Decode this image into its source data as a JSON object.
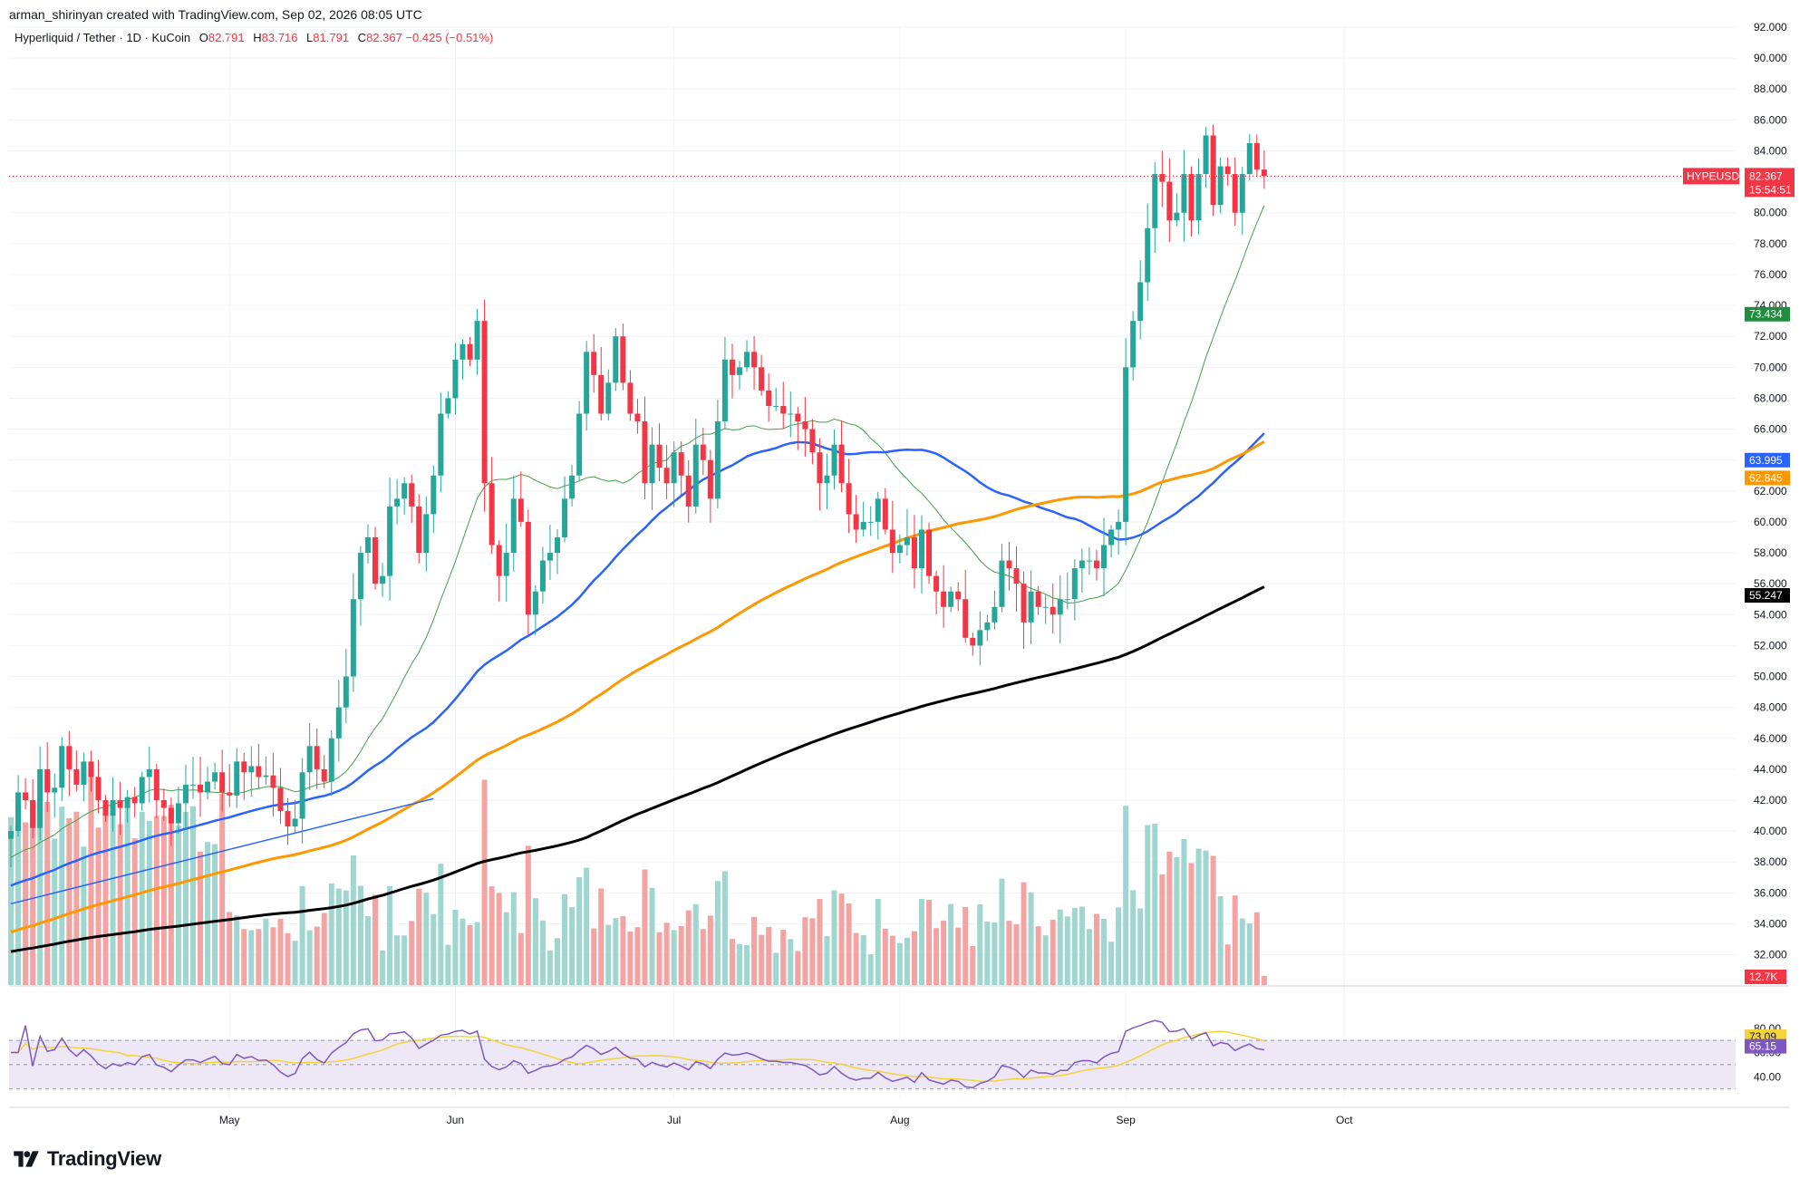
{
  "attribution": "arman_shirinyan created with TradingView.com, Sep 02, 2026 08:05 UTC",
  "symbol": {
    "name": "Hyperliquid / Tether · 1D · KuCoin",
    "open_label": "O",
    "open": "82.791",
    "high_label": "H",
    "high": "83.716",
    "low_label": "L",
    "low": "81.791",
    "close_label": "C",
    "close": "82.367",
    "change": "−0.425 (−0.51%)"
  },
  "brand": {
    "name": "TradingView",
    "logo_icon": "tradingview-logo-icon"
  },
  "colors": {
    "up": "#26a69a",
    "down": "#f23645",
    "vol_up": "#9fd6cf",
    "vol_down": "#f4a3a3",
    "ma20": "#43a047",
    "ma50": "#2962ff",
    "ma100": "#ff9800",
    "ma200": "#000000",
    "rsi": "#7e57c2",
    "rsi_ma": "#f5d33b",
    "rsi_band": "#ede7f6"
  },
  "chart_data": {
    "type": "candlestick",
    "timeframe": "1D",
    "exchange": "KuCoin",
    "ylim": [
      30.5,
      93
    ],
    "y_ticks": [
      "92.000",
      "90.000",
      "88.000",
      "86.000",
      "84.000",
      "82.000",
      "80.000",
      "78.000",
      "76.000",
      "74.000",
      "72.000",
      "70.000",
      "68.000",
      "66.000",
      "64.000",
      "62.000",
      "60.000",
      "58.000",
      "56.000",
      "54.000",
      "52.000",
      "50.000",
      "48.000",
      "46.000",
      "44.000",
      "42.000",
      "40.000",
      "38.000",
      "36.000",
      "34.000",
      "32.000"
    ],
    "x_ticks": [
      {
        "label": "May",
        "day": 30
      },
      {
        "label": "Jun",
        "day": 61
      },
      {
        "label": "Jul",
        "day": 91
      },
      {
        "label": "Aug",
        "day": 122
      },
      {
        "label": "Sep",
        "day": 153
      },
      {
        "label": "Oct",
        "day": 183
      }
    ],
    "candles_start": "Apr 01",
    "candles_close": [
      40.0,
      42.5,
      42.0,
      40.2,
      44.0,
      42.5,
      42.8,
      45.5,
      44.0,
      43.0,
      44.5,
      43.5,
      42.0,
      41.0,
      42.0,
      41.5,
      42.2,
      41.8,
      43.5,
      44.0,
      42.0,
      41.5,
      40.5,
      41.8,
      43.0,
      43.0,
      42.5,
      43.2,
      43.8,
      42.5,
      42.3,
      44.5,
      43.8,
      44.2,
      43.5,
      43.6,
      42.8,
      41.3,
      40.3,
      40.8,
      43.8,
      45.5,
      44.0,
      43.2,
      46.0,
      48.0,
      50.0,
      55.0,
      58.0,
      59.0,
      56.0,
      56.5,
      61.0,
      61.5,
      62.5,
      61.0,
      58.0,
      60.5,
      63.0,
      67.0,
      68.0,
      70.5,
      71.5,
      70.5,
      73.0,
      62.5,
      58.5,
      56.5,
      58.0,
      61.5,
      60.0,
      54.0,
      55.5,
      57.5,
      58.0,
      59.0,
      61.5,
      63.0,
      67.0,
      71.0,
      69.5,
      67.0,
      69.0,
      72.0,
      69.0,
      67.0,
      66.5,
      62.5,
      65.0,
      63.5,
      62.5,
      64.5,
      63.0,
      61.0,
      65.0,
      64.0,
      61.5,
      66.5,
      70.5,
      69.5,
      70.0,
      71.0,
      70.0,
      68.5,
      67.5,
      67.5,
      67.0,
      67.0,
      66.5,
      66.0,
      64.5,
      62.5,
      63.0,
      65.0,
      62.5,
      60.5,
      59.5,
      60.0,
      60.0,
      61.5,
      59.5,
      58.0,
      58.5,
      59.0,
      57.0,
      59.5,
      56.5,
      55.5,
      54.5,
      55.5,
      55.0,
      52.5,
      52.0,
      53.0,
      53.5,
      54.5,
      57.5,
      57.0,
      56.0,
      53.5,
      55.5,
      54.5,
      54.5,
      54.0,
      55.0,
      55.0,
      57.0,
      57.5,
      57.5,
      57.0,
      58.5,
      59.5,
      60.0,
      70.0,
      73.0,
      75.5,
      79.0,
      82.5,
      82.0,
      79.5,
      80.0,
      82.5,
      79.5,
      82.5,
      85.0,
      80.5,
      83.0,
      82.5,
      80.0,
      82.5,
      84.5,
      82.791,
      82.367
    ],
    "rsi": {
      "last": "65.15",
      "ma_last": "73.09",
      "levels": [
        "80.00",
        "60.00",
        "40.00"
      ]
    },
    "volume": {
      "last": "12.7K"
    },
    "price_tags": [
      {
        "id": "last-price",
        "label": "HYPEUSDT",
        "value": "82.367",
        "countdown": "15:54:51",
        "color": "#f23645"
      },
      {
        "id": "ma20",
        "value": "73.434",
        "color": "#1e8e3e"
      },
      {
        "id": "ma50",
        "value": "63.995",
        "color": "#2962ff"
      },
      {
        "id": "ma100",
        "value": "62.845",
        "color": "#ff9800"
      },
      {
        "id": "ma200",
        "value": "55.247",
        "color": "#000000"
      }
    ],
    "rsi_tags": [
      {
        "value": "73.09",
        "color": "#f5d33b",
        "text_color": "#131722"
      },
      {
        "value": "65.15",
        "color": "#7e57c2",
        "text_color": "#ffffff"
      }
    ],
    "volume_tag": {
      "value": "12.7K",
      "color": "#f23645"
    },
    "grid": true
  }
}
